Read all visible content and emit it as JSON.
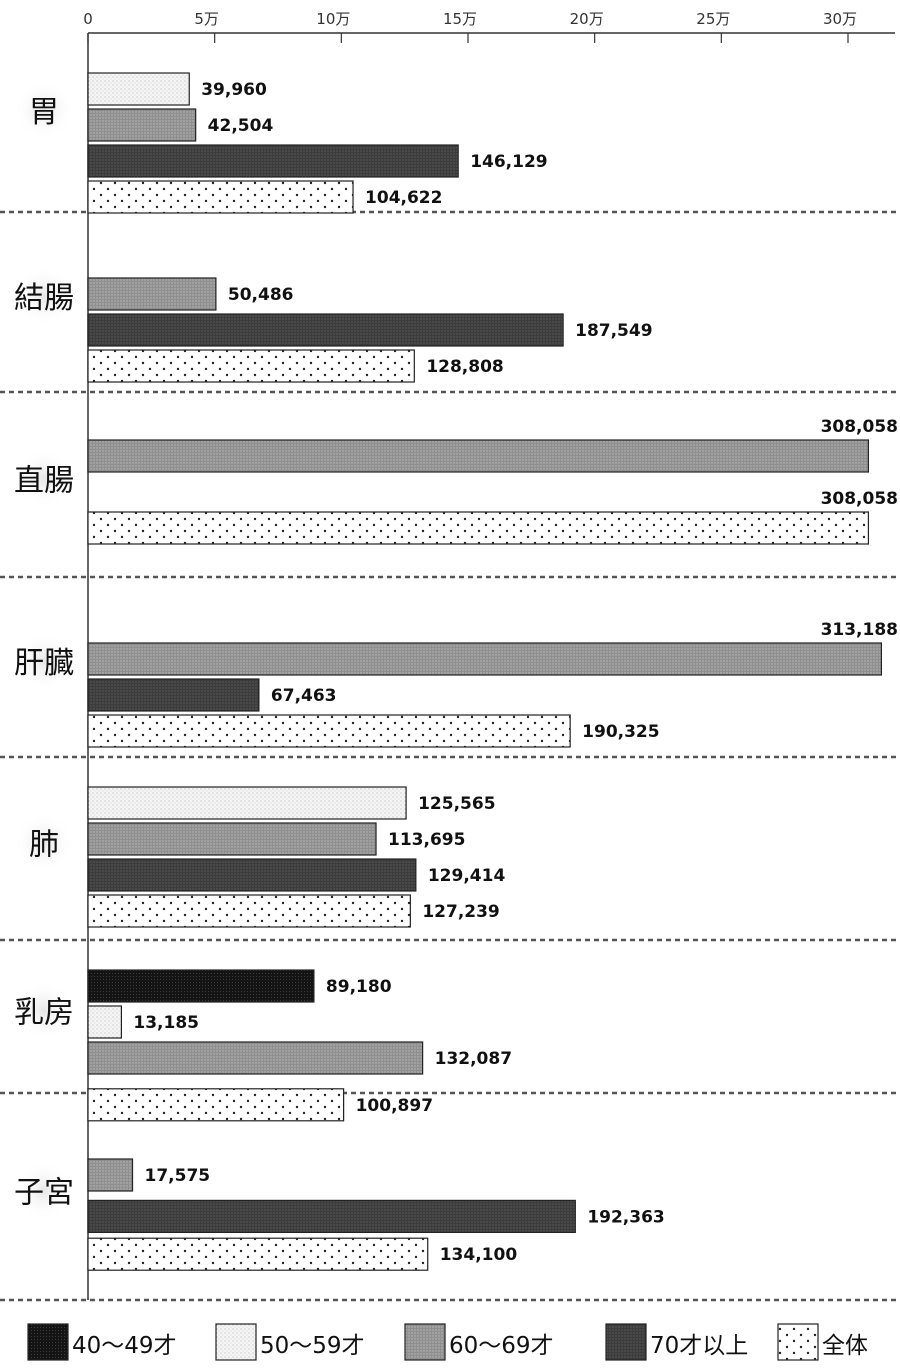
{
  "chart_data": {
    "type": "bar",
    "orientation": "horizontal",
    "title": "",
    "xlabel": "",
    "ylabel": "",
    "xlim": [
      0,
      310000
    ],
    "xticks": [
      {
        "value": 0,
        "label": "0"
      },
      {
        "value": 50000,
        "label": "5万"
      },
      {
        "value": 100000,
        "label": "10万"
      },
      {
        "value": 150000,
        "label": "15万"
      },
      {
        "value": 200000,
        "label": "20万"
      },
      {
        "value": 250000,
        "label": "25万"
      },
      {
        "value": 300000,
        "label": "30万"
      }
    ],
    "legend_position": "bottom",
    "series": [
      {
        "name": "40〜49才",
        "color": "#1c1c1c",
        "pattern": "dark-stipple"
      },
      {
        "name": "50〜59才",
        "color": "#eeeeee",
        "pattern": "light-stipple"
      },
      {
        "name": "60〜69才",
        "color": "#8f8f8f",
        "pattern": "medium-gray"
      },
      {
        "name": "70才以上",
        "color": "#444444",
        "pattern": "dark-gray"
      },
      {
        "name": "全体",
        "color": "#ffffff",
        "pattern": "dots"
      }
    ],
    "categories": [
      {
        "label": "胃",
        "bars": [
          {
            "series": "50〜59才",
            "value": 39960,
            "label": "39,960"
          },
          {
            "series": "60〜69才",
            "value": 42504,
            "label": "42,504"
          },
          {
            "series": "70才以上",
            "value": 146129,
            "label": "146,129"
          },
          {
            "series": "全体",
            "value": 104622,
            "label": "104,622"
          }
        ]
      },
      {
        "label": "結腸",
        "bars": [
          {
            "series": "60〜69才",
            "value": 50486,
            "label": "50,486"
          },
          {
            "series": "70才以上",
            "value": 187549,
            "label": "187,549"
          },
          {
            "series": "全体",
            "value": 128808,
            "label": "128,808"
          }
        ]
      },
      {
        "label": "直腸",
        "bars": [
          {
            "series": "60〜69才",
            "value": 308058,
            "label": "308,058"
          },
          {
            "series": "全体",
            "value": 308058,
            "label": "308,058"
          }
        ]
      },
      {
        "label": "肝臓",
        "bars": [
          {
            "series": "60〜69才",
            "value": 313188,
            "label": "313,188"
          },
          {
            "series": "70才以上",
            "value": 67463,
            "label": "67,463"
          },
          {
            "series": "全体",
            "value": 190325,
            "label": "190,325"
          }
        ]
      },
      {
        "label": "肺",
        "bars": [
          {
            "series": "50〜59才",
            "value": 125565,
            "label": "125,565"
          },
          {
            "series": "60〜69才",
            "value": 113695,
            "label": "113,695"
          },
          {
            "series": "70才以上",
            "value": 129414,
            "label": "129,414"
          },
          {
            "series": "全体",
            "value": 127239,
            "label": "127,239"
          }
        ]
      },
      {
        "label": "乳房",
        "bars": [
          {
            "series": "40〜49才",
            "value": 89180,
            "label": "89,180"
          },
          {
            "series": "50〜59才",
            "value": 13185,
            "label": "13,185"
          },
          {
            "series": "60〜69才",
            "value": 132087,
            "label": "132,087"
          },
          {
            "series": "全体",
            "value": 100897,
            "label": "100,897"
          }
        ]
      },
      {
        "label": "子宮",
        "bars": [
          {
            "series": "60〜69才",
            "value": 17575,
            "label": "17,575"
          },
          {
            "series": "70才以上",
            "value": 192363,
            "label": "192,363"
          },
          {
            "series": "全体",
            "value": 134100,
            "label": "134,100"
          }
        ]
      }
    ]
  }
}
